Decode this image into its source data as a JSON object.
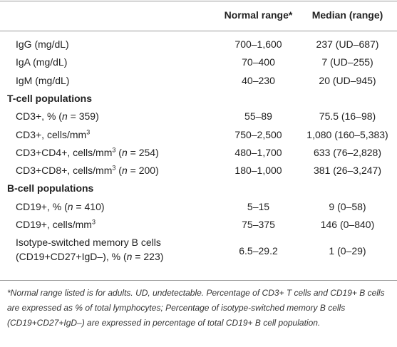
{
  "table": {
    "columns": [
      "Normal range*",
      "Median (range)"
    ],
    "rows": [
      {
        "label": [
          [
            {
              "text": "IgG (mg/dL)"
            }
          ]
        ],
        "cells": [
          "700–1,600",
          "237 (UD–687)"
        ]
      },
      {
        "label": [
          [
            {
              "text": "IgA (mg/dL)"
            }
          ]
        ],
        "cells": [
          "70–400",
          "7 (UD–255)"
        ]
      },
      {
        "label": [
          [
            {
              "text": "IgM (mg/dL)"
            }
          ]
        ],
        "cells": [
          "40–230",
          "20 (UD–945)"
        ]
      },
      {
        "group": "T-cell populations"
      },
      {
        "label": [
          [
            {
              "text": "CD3+, % ("
            },
            {
              "text": "n",
              "style": "italic"
            },
            {
              "text": " = 359)"
            }
          ]
        ],
        "cells": [
          "55–89",
          "75.5 (16–98)"
        ]
      },
      {
        "label": [
          [
            {
              "text": "CD3+, cells/mm"
            },
            {
              "text": "3",
              "style": "sup"
            }
          ]
        ],
        "cells": [
          "750–2,500",
          "1,080 (160–5,383)"
        ]
      },
      {
        "label": [
          [
            {
              "text": "CD3+CD4+, cells/mm"
            },
            {
              "text": "3",
              "style": "sup"
            },
            {
              "text": " ("
            },
            {
              "text": "n",
              "style": "italic"
            },
            {
              "text": " = 254)"
            }
          ]
        ],
        "cells": [
          "480–1,700",
          "633 (76–2,828)"
        ]
      },
      {
        "label": [
          [
            {
              "text": "CD3+CD8+, cells/mm"
            },
            {
              "text": "3",
              "style": "sup"
            },
            {
              "text": " ("
            },
            {
              "text": "n",
              "style": "italic"
            },
            {
              "text": " = 200)"
            }
          ]
        ],
        "cells": [
          "180–1,000",
          "381 (26–3,247)"
        ]
      },
      {
        "group": "B-cell populations"
      },
      {
        "label": [
          [
            {
              "text": "CD19+, % ("
            },
            {
              "text": "n",
              "style": "italic"
            },
            {
              "text": " = 410)"
            }
          ]
        ],
        "cells": [
          "5–15",
          "9 (0–58)"
        ]
      },
      {
        "label": [
          [
            {
              "text": "CD19+, cells/mm"
            },
            {
              "text": "3",
              "style": "sup"
            }
          ]
        ],
        "cells": [
          "75–375",
          "146 (0–840)"
        ]
      },
      {
        "label": [
          [
            {
              "text": "Isotype-switched memory B cells"
            }
          ],
          [
            {
              "text": "(CD19+CD27+IgD–), % ("
            },
            {
              "text": "n",
              "style": "italic"
            },
            {
              "text": " = 223)"
            }
          ]
        ],
        "cells": [
          "6.5–29.2",
          "1 (0–29)"
        ]
      }
    ],
    "footnote": "*Normal range listed is for adults. UD, undetectable. Percentage of CD3+ T cells and CD19+ B cells are expressed as % of total lymphocytes; Percentage of isotype-switched memory B cells (CD19+CD27+IgD–) are expressed in percentage of total CD19+ B cell population."
  }
}
